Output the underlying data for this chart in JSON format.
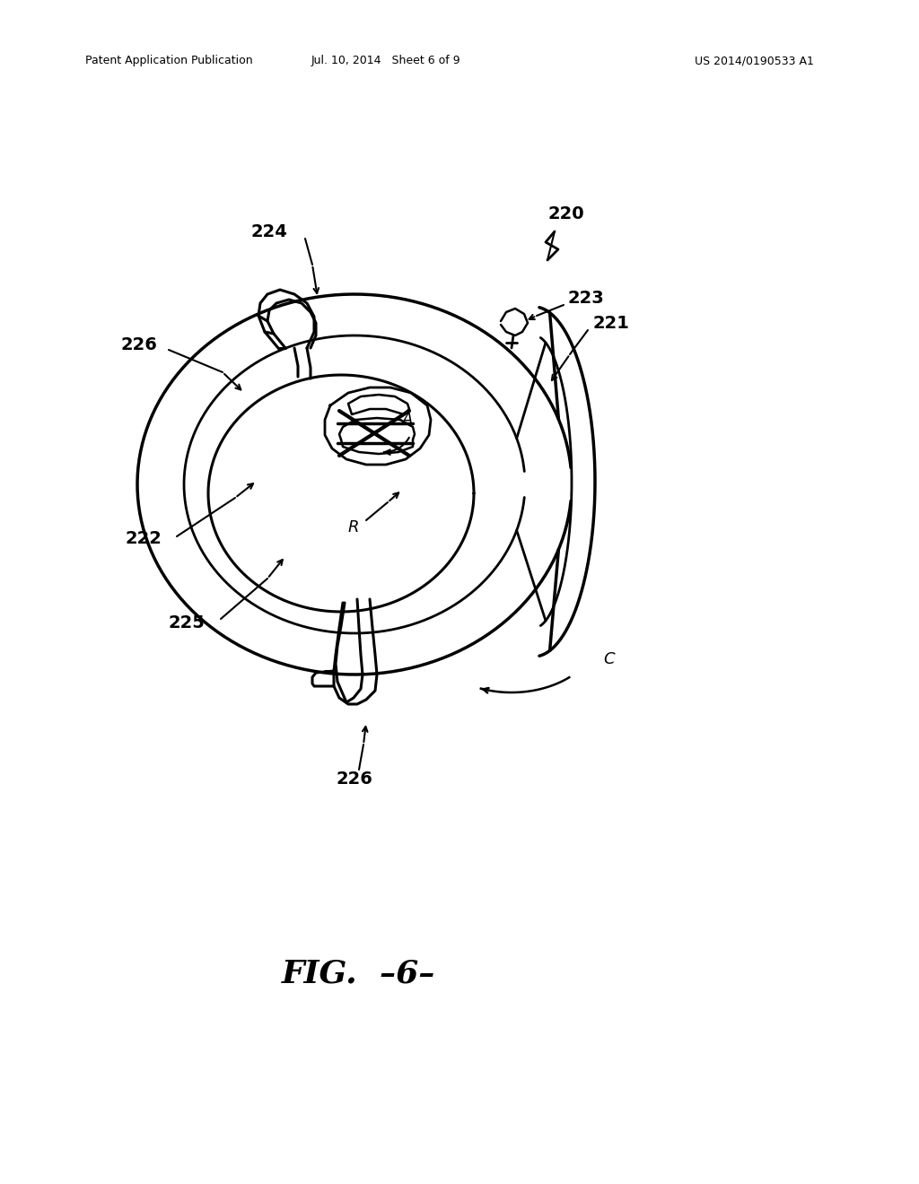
{
  "bg_color": "#ffffff",
  "line_color": "#000000",
  "header_left": "Patent Application Publication",
  "header_mid": "Jul. 10, 2014   Sheet 6 of 9",
  "header_right": "US 2014/0190533 A1",
  "fig_label": "FIG.  –6–",
  "fig_label2": "FIG.  -6-"
}
